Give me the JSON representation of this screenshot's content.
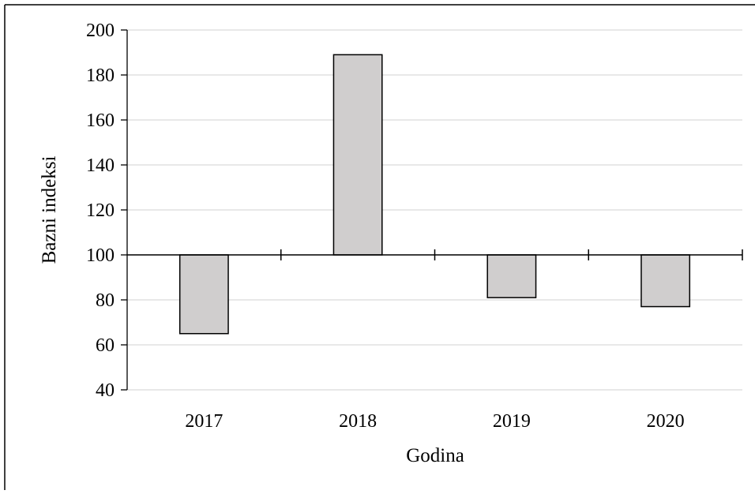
{
  "chart_data": {
    "type": "bar",
    "title": "",
    "xlabel": "Godina",
    "ylabel": "Bazni indeksi",
    "categories": [
      "2017",
      "2018",
      "2019",
      "2020"
    ],
    "series": [
      {
        "values": [
          65,
          189,
          81,
          77
        ]
      }
    ],
    "baseline": 100,
    "ylim": [
      40,
      200
    ],
    "yticks": [
      "40",
      "60",
      "80",
      "100",
      "120",
      "140",
      "160",
      "180",
      "200"
    ],
    "grid": true,
    "legend": "none",
    "colors": {
      "bar_fill": "#d0cece",
      "bar_stroke": "#000000",
      "grid": "#d9d9d9",
      "axis": "#000000"
    }
  }
}
